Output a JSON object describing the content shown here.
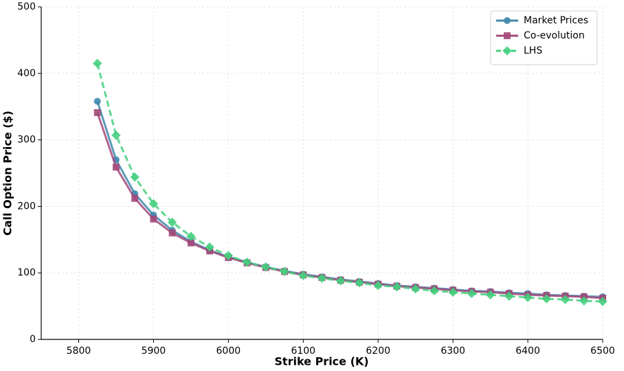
{
  "chart_data": {
    "type": "line",
    "x_label": "Strike Price (K)",
    "y_label": "Call Option Price ($)",
    "x": [
      5825,
      5850,
      5875,
      5900,
      5925,
      5950,
      5975,
      6000,
      6025,
      6050,
      6075,
      6100,
      6125,
      6150,
      6175,
      6200,
      6225,
      6250,
      6275,
      6300,
      6325,
      6350,
      6375,
      6400,
      6425,
      6450,
      6475,
      6500
    ],
    "series": [
      {
        "name": "Market Prices",
        "color": "#3f88ad",
        "marker": "circle",
        "dashed": false,
        "values": [
          358,
          270,
          219,
          187,
          164,
          147,
          134,
          124,
          116,
          109,
          103,
          98,
          94,
          90,
          87,
          84,
          81,
          79,
          77,
          75,
          73,
          72,
          70,
          69,
          67,
          66,
          65,
          64
        ]
      },
      {
        "name": "Co-evolution",
        "color": "#a3497a",
        "marker": "square",
        "dashed": false,
        "values": [
          341,
          259,
          212,
          181,
          160,
          145,
          133,
          123,
          115,
          108,
          102,
          97,
          93,
          89,
          86,
          83,
          80,
          78,
          76,
          74,
          72,
          71,
          69,
          67,
          66,
          65,
          64,
          62
        ]
      },
      {
        "name": "LHS",
        "color": "#45d07f",
        "marker": "diamond",
        "dashed": true,
        "values": [
          415,
          307,
          244,
          204,
          176,
          155,
          139,
          126,
          116,
          109,
          102,
          96,
          92,
          88,
          85,
          81,
          79,
          76,
          73,
          71,
          69,
          67,
          65,
          63,
          61,
          60,
          58,
          57
        ]
      }
    ],
    "xlim": [
      5750,
      6500
    ],
    "ylim": [
      0,
      500
    ],
    "xticks": [
      5800,
      5900,
      6000,
      6100,
      6200,
      6300,
      6400,
      6500
    ],
    "yticks": [
      0,
      100,
      200,
      300,
      400,
      500
    ],
    "grid": true,
    "legend": "upper right"
  }
}
